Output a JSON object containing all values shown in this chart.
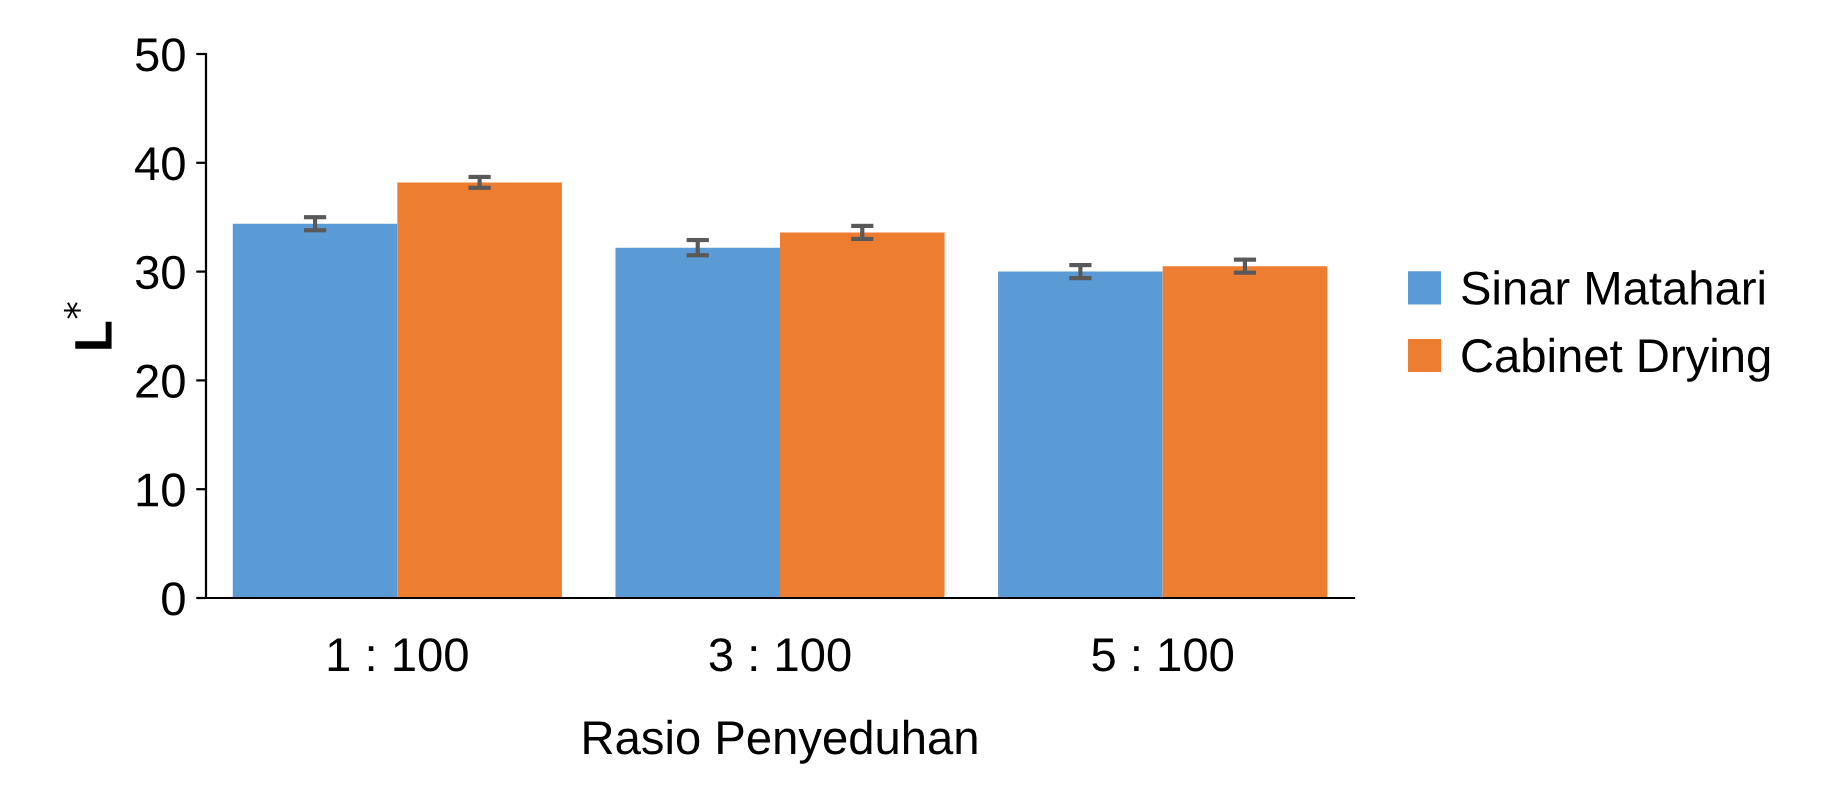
{
  "chart_data": {
    "type": "bar",
    "xlabel": "Rasio Penyeduhan",
    "ylabel": "L$^{*}$",
    "categories": [
      "1 : 100",
      "3 : 100",
      "5 : 100"
    ],
    "series": [
      {
        "name": "Sinar Matahari",
        "color": "#5b9bd5",
        "values": [
          34.4,
          32.2,
          30.0
        ],
        "errors": [
          0.6,
          0.7,
          0.6
        ]
      },
      {
        "name": "Cabinet Drying",
        "color": "#ed7d31",
        "values": [
          38.2,
          33.6,
          30.5
        ],
        "errors": [
          0.5,
          0.6,
          0.6
        ]
      }
    ],
    "ylim": [
      0,
      50
    ],
    "yticks": [
      0,
      10,
      20,
      30,
      40,
      50
    ],
    "grid": false,
    "legend": "right"
  }
}
